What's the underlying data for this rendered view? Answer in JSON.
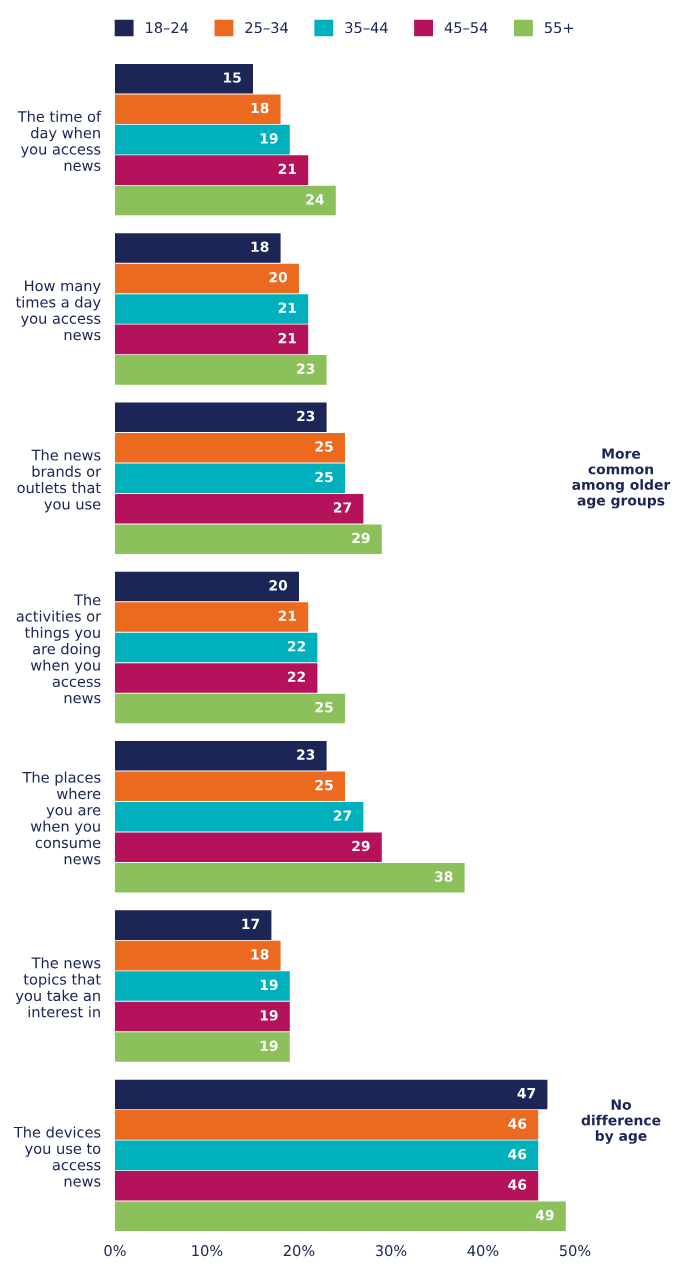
{
  "chart_data": {
    "type": "bar",
    "orientation": "horizontal",
    "categories": [
      "The time of\nday when\nyou access\nnews",
      "How many\ntimes a day\nyou access\nnews",
      "The news\nbrands or\noutlets that\nyou use",
      "The\nactivities or\nthings you\nare doing\nwhen you\naccess\nnews",
      "The places\nwhere\nyou are\nwhen you\nconsume\nnews",
      "The news\ntopics that\nyou take an\ninterest in",
      "The devices\nyou use to\naccess\nnews"
    ],
    "series": [
      {
        "name": "18–24",
        "color": "#1b2656",
        "values": [
          15,
          18,
          23,
          20,
          23,
          17,
          47
        ]
      },
      {
        "name": "25–34",
        "color": "#ec6a1f",
        "values": [
          18,
          20,
          25,
          21,
          25,
          18,
          46
        ]
      },
      {
        "name": "35–44",
        "color": "#00b0bd",
        "values": [
          19,
          21,
          25,
          22,
          27,
          19,
          46
        ]
      },
      {
        "name": "45–54",
        "color": "#b4135b",
        "values": [
          21,
          21,
          27,
          22,
          29,
          19,
          46
        ]
      },
      {
        "name": "55+",
        "color": "#8bc05a",
        "values": [
          24,
          23,
          29,
          25,
          38,
          19,
          49
        ]
      }
    ],
    "xlim": [
      0,
      50
    ],
    "xticks": [
      {
        "value": 0,
        "label": "0%"
      },
      {
        "value": 10,
        "label": "10%"
      },
      {
        "value": 20,
        "label": "20%"
      },
      {
        "value": 30,
        "label": "30%"
      },
      {
        "value": 40,
        "label": "40%"
      },
      {
        "value": 50,
        "label": "50%"
      }
    ],
    "data_labels": true,
    "legend": "top",
    "grid": false,
    "annotations": [
      "More\ncommon\namong older\nage groups",
      "No\ndifference\nby age"
    ]
  }
}
